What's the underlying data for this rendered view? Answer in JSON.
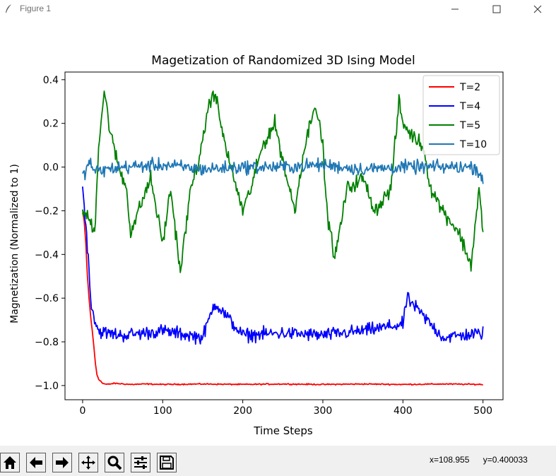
{
  "window": {
    "title": "Figure 1",
    "minimize_icon": "minimize-icon",
    "maximize_icon": "maximize-icon",
    "close_icon": "close-icon"
  },
  "toolbar": {
    "buttons": [
      {
        "icon": "home-icon"
      },
      {
        "icon": "back-arrow-icon"
      },
      {
        "icon": "forward-arrow-icon"
      },
      {
        "icon": "pan-icon"
      },
      {
        "icon": "zoom-icon"
      },
      {
        "icon": "configure-subplots-icon"
      },
      {
        "icon": "save-icon"
      }
    ],
    "x_readout": "x=108.955",
    "y_readout": "y=0.400033"
  },
  "chart_data": {
    "type": "line",
    "title": "Magetization of Randomized 3D Ising Model",
    "xlabel": "Time Steps",
    "ylabel": "Magnetization (Normalized to 1)",
    "xlim": [
      -22,
      525
    ],
    "ylim": [
      -1.065,
      0.435
    ],
    "xticks": [
      0,
      100,
      200,
      300,
      400,
      500
    ],
    "xtick_labels": [
      "0",
      "100",
      "200",
      "300",
      "400",
      "500"
    ],
    "yticks": [
      0.4,
      0.2,
      0.0,
      -0.2,
      -0.4,
      -0.6,
      -0.8,
      -1.0
    ],
    "ytick_labels": [
      "0.4",
      "0.2",
      "0.0",
      "−0.2",
      "−0.4",
      "−0.6",
      "−0.8",
      "−1.0"
    ],
    "legend_position": "top-right",
    "grid": false,
    "series": [
      {
        "name": "T=2",
        "color": "#ff0000",
        "x": [
          0,
          2,
          4,
          6,
          8,
          10,
          12,
          14,
          16,
          18,
          20,
          25,
          30,
          40,
          60,
          80,
          100,
          150,
          200,
          250,
          300,
          350,
          400,
          450,
          500
        ],
        "y": [
          -0.21,
          -0.25,
          -0.35,
          -0.5,
          -0.6,
          -0.68,
          -0.75,
          -0.82,
          -0.9,
          -0.95,
          -0.97,
          -0.99,
          -0.995,
          -0.99,
          -0.995,
          -0.993,
          -0.995,
          -0.993,
          -0.995,
          -0.993,
          -0.995,
          -0.993,
          -0.995,
          -0.993,
          -0.995
        ]
      },
      {
        "name": "T=4",
        "color": "#0000ff",
        "x": [
          0,
          5,
          10,
          15,
          20,
          30,
          50,
          100,
          150,
          165,
          200,
          250,
          300,
          350,
          400,
          405,
          450,
          500
        ],
        "y": [
          -0.1,
          -0.3,
          -0.6,
          -0.7,
          -0.75,
          -0.76,
          -0.77,
          -0.75,
          -0.78,
          -0.62,
          -0.77,
          -0.76,
          -0.77,
          -0.75,
          -0.72,
          -0.6,
          -0.78,
          -0.76
        ]
      },
      {
        "name": "T=5",
        "color": "#008000",
        "x": [
          0,
          10,
          15,
          20,
          27,
          35,
          45,
          55,
          60,
          70,
          85,
          100,
          110,
          122,
          135,
          150,
          155,
          165,
          175,
          185,
          200,
          210,
          225,
          240,
          255,
          265,
          275,
          290,
          300,
          305,
          315,
          330,
          350,
          365,
          385,
          395,
          400,
          410,
          425,
          435,
          450,
          470,
          485,
          495,
          500
        ],
        "y": [
          -0.2,
          -0.25,
          -0.3,
          0.1,
          0.35,
          0.15,
          0.0,
          -0.1,
          -0.3,
          -0.2,
          -0.05,
          -0.35,
          -0.1,
          -0.48,
          -0.1,
          0.1,
          0.25,
          0.35,
          0.15,
          0.0,
          -0.2,
          -0.1,
          0.1,
          0.2,
          -0.05,
          -0.2,
          0.05,
          0.3,
          0.1,
          -0.2,
          -0.42,
          -0.1,
          -0.05,
          -0.2,
          -0.1,
          0.3,
          0.2,
          0.15,
          0.1,
          -0.1,
          -0.2,
          -0.3,
          -0.45,
          -0.1,
          -0.3
        ]
      },
      {
        "name": "T=10",
        "color": "#1f77b4",
        "x": [
          0,
          5,
          10,
          15,
          50,
          100,
          150,
          200,
          250,
          300,
          350,
          400,
          450,
          490,
          500
        ],
        "y": [
          -0.05,
          0.0,
          0.02,
          -0.02,
          0.0,
          0.01,
          -0.01,
          0.0,
          0.0,
          0.01,
          -0.01,
          0.0,
          0.0,
          0.0,
          -0.05
        ]
      }
    ]
  }
}
